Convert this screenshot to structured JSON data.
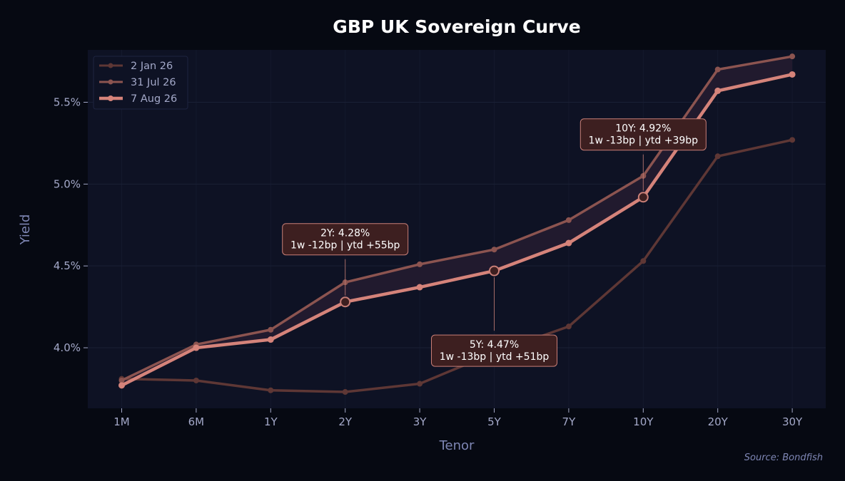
{
  "chart_data": {
    "type": "line",
    "title": "GBP UK Sovereign Curve",
    "xlabel": "Tenor",
    "ylabel": "Yield",
    "source": "Source: Bondfish",
    "categories": [
      "1M",
      "6M",
      "1Y",
      "2Y",
      "3Y",
      "5Y",
      "7Y",
      "10Y",
      "20Y",
      "30Y"
    ],
    "ylim": [
      3.63,
      5.82
    ],
    "yticks": [
      4.0,
      4.5,
      5.0,
      5.5
    ],
    "ytick_labels": [
      "4.0%",
      "4.5%",
      "5.0%",
      "5.5%"
    ],
    "grid": true,
    "legend_position": "top-left",
    "series": [
      {
        "name": "2 Jan 26",
        "color": "#5e3735",
        "values": [
          3.81,
          3.8,
          3.74,
          3.73,
          3.78,
          3.97,
          4.13,
          4.53,
          5.17,
          5.27
        ]
      },
      {
        "name": "31 Jul 26",
        "color": "#8c5450",
        "values": [
          3.8,
          4.02,
          4.11,
          4.4,
          4.51,
          4.6,
          4.78,
          5.05,
          5.7,
          5.78
        ]
      },
      {
        "name": "7 Aug 26",
        "color": "#d5837a",
        "values": [
          3.77,
          4.0,
          4.05,
          4.28,
          4.37,
          4.47,
          4.64,
          4.92,
          5.57,
          5.67
        ]
      }
    ],
    "annotations": [
      {
        "tenor": "2Y",
        "line1": "2Y: 4.28%",
        "line2": "1w -12bp | ytd +55bp",
        "position": "above"
      },
      {
        "tenor": "5Y",
        "line1": "5Y: 4.47%",
        "line2": "1w -13bp | ytd +51bp",
        "position": "below"
      },
      {
        "tenor": "10Y",
        "line1": "10Y: 4.92%",
        "line2": "1w -13bp | ytd +39bp",
        "position": "above"
      }
    ],
    "colors": {
      "page_bg": "#060912",
      "plot_bg": "#0e1224",
      "grid": "#1a2035",
      "band": "#211a2e",
      "annotation_bg": "#3d1f20",
      "annotation_border": "#c97f77"
    }
  }
}
